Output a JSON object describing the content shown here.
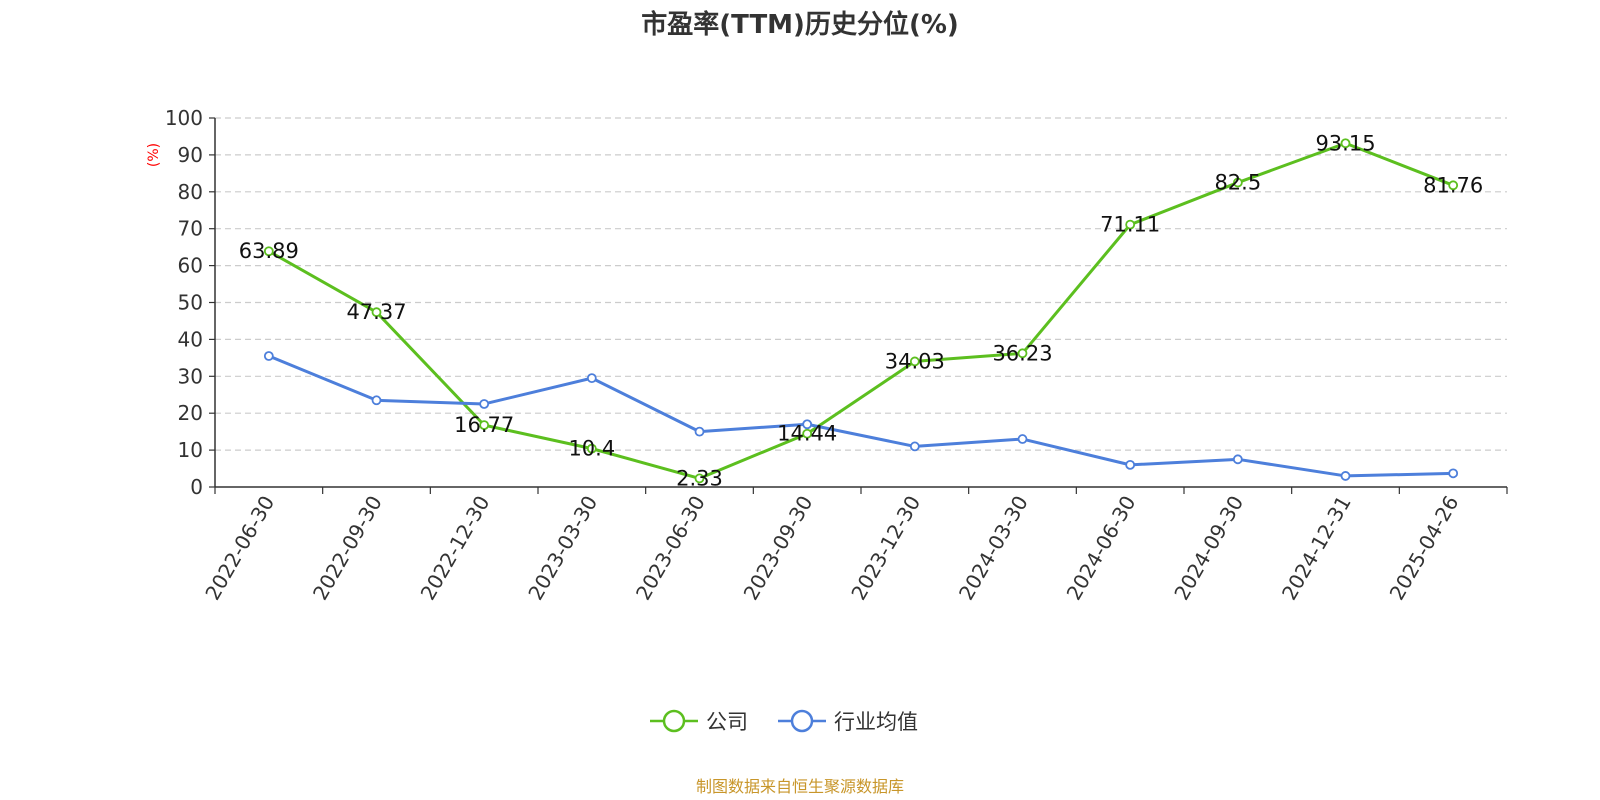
{
  "chart_data": {
    "type": "line",
    "title": "市盈率(TTM)历史分位(%)",
    "ylabel": "(%)",
    "ylim": [
      0,
      100
    ],
    "yticks": [
      0,
      10,
      20,
      30,
      40,
      50,
      60,
      70,
      80,
      90,
      100
    ],
    "grid": true,
    "legend_position": "bottom-center",
    "categories": [
      "2022-06-30",
      "2022-09-30",
      "2022-12-30",
      "2023-03-30",
      "2023-06-30",
      "2023-09-30",
      "2023-12-30",
      "2024-03-30",
      "2024-06-30",
      "2024-09-30",
      "2024-12-31",
      "2025-04-26"
    ],
    "series": [
      {
        "name": "公司",
        "color": "#5cbf1f",
        "values": [
          63.89,
          47.37,
          16.77,
          10.4,
          2.33,
          14.44,
          34.03,
          36.23,
          71.11,
          82.5,
          93.15,
          81.76
        ],
        "labels": [
          "63.89",
          "47.37",
          "16.77",
          "10.4",
          "2.33",
          "14.44",
          "34.03",
          "36.23",
          "71.11",
          "82.5",
          "93.15",
          "81.76"
        ]
      },
      {
        "name": "行业均值",
        "color": "#4d7fdb",
        "values": [
          35.5,
          23.5,
          22.5,
          29.5,
          15.0,
          17.0,
          11.0,
          13.0,
          6.0,
          7.5,
          3.0,
          3.7
        ]
      }
    ],
    "source": "制图数据来自恒生聚源数据库"
  }
}
